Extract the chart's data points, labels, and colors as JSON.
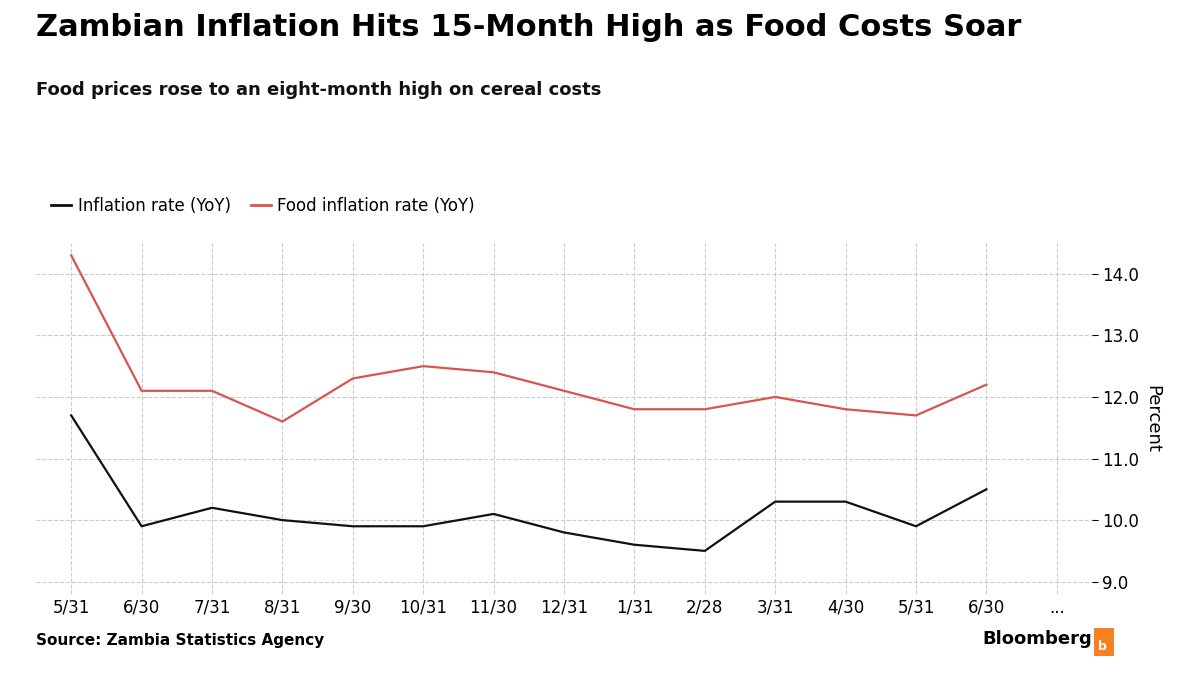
{
  "title": "Zambian Inflation Hits 15-Month High as Food Costs Soar",
  "subtitle": "Food prices rose to an eight-month high on cereal costs",
  "source": "Source: Zambia Statistics Agency",
  "legend": [
    "Inflation rate (YoY)",
    "Food inflation rate (YoY)"
  ],
  "x_labels": [
    "5/31",
    "6/30",
    "7/31",
    "8/31",
    "9/30",
    "10/31",
    "11/30",
    "12/31",
    "1/31",
    "2/28",
    "3/31",
    "4/30",
    "5/31",
    "6/30",
    "..."
  ],
  "inflation": [
    11.7,
    9.9,
    10.2,
    10.0,
    9.9,
    9.9,
    10.1,
    9.8,
    9.6,
    9.5,
    10.3,
    10.3,
    9.9,
    10.5
  ],
  "food_inflation": [
    14.3,
    12.1,
    12.1,
    11.6,
    12.3,
    12.5,
    12.4,
    12.1,
    11.8,
    11.8,
    12.0,
    11.8,
    11.7,
    12.2
  ],
  "inflation_color": "#111111",
  "food_inflation_color": "#d9534f",
  "background_color": "#ffffff",
  "grid_color": "#cccccc",
  "ylabel": "Percent",
  "ylim": [
    8.8,
    14.5
  ],
  "yticks": [
    9.0,
    10.0,
    11.0,
    12.0,
    13.0,
    14.0
  ],
  "line_width": 1.6,
  "title_fontsize": 22,
  "subtitle_fontsize": 13,
  "tick_fontsize": 12,
  "legend_fontsize": 12
}
